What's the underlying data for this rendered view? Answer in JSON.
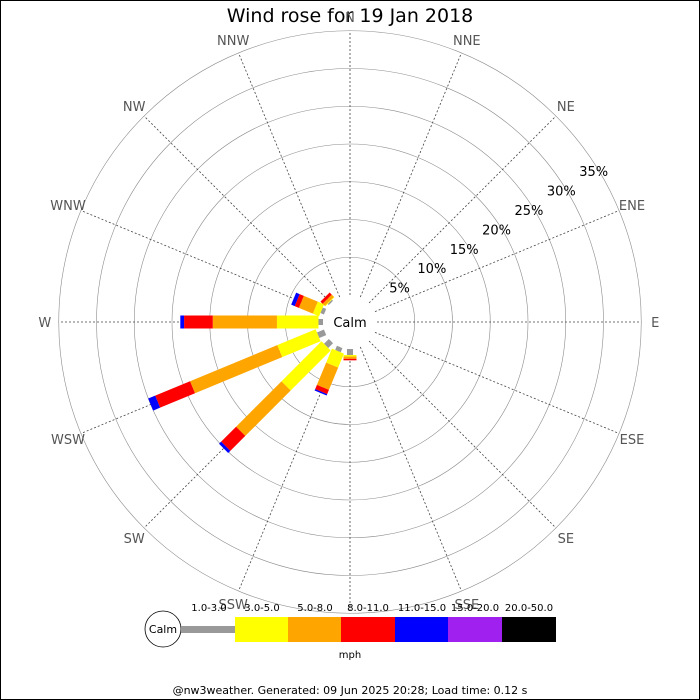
{
  "title": "Wind rose for 19 Jan 2018",
  "footer": "@nw3weather. Generated: 09 Jun 2025 20:28; Load time: 0.12 s",
  "chart_data": {
    "type": "wind_rose",
    "title": "Wind rose for 19 Jan 2018",
    "center_label": "Calm",
    "unit": "mph",
    "rlim": [
      0,
      35
    ],
    "radial_ticks": [
      5,
      10,
      15,
      20,
      25,
      30,
      35
    ],
    "radial_tick_labels": [
      "5%",
      "10%",
      "15%",
      "20%",
      "25%",
      "30%",
      "35%"
    ],
    "directions": [
      "N",
      "NNE",
      "NE",
      "ENE",
      "E",
      "ESE",
      "SE",
      "SSE",
      "S",
      "SSW",
      "SW",
      "WSW",
      "W",
      "WNW",
      "NW",
      "NNW"
    ],
    "speed_bins": [
      {
        "label": "",
        "color": "#999999"
      },
      {
        "label": "1.0-3.0",
        "color": "#ffff00"
      },
      {
        "label": "3.0-5.0",
        "color": "#ffa500"
      },
      {
        "label": "5.0-8.0",
        "color": "#ff0000"
      },
      {
        "label": "8.0-11.0",
        "color": "#0000ff"
      },
      {
        "label": "11.0-15.0",
        "color": "#a020f0"
      },
      {
        "label": "15.0-20.0",
        "color": "#000000"
      },
      {
        "label": "20.0-50.0",
        "color": ""
      }
    ],
    "series": [
      {
        "direction": "S",
        "values": [
          0.8,
          0.2,
          0.3,
          0.2,
          0.0,
          0.0,
          0.0
        ]
      },
      {
        "direction": "SSW",
        "values": [
          0.6,
          2.0,
          3.2,
          0.6,
          0.2,
          0.0,
          0.0
        ]
      },
      {
        "direction": "SW",
        "values": [
          0.9,
          7.5,
          8.5,
          2.8,
          0.4,
          0.0,
          0.0
        ]
      },
      {
        "direction": "WSW",
        "values": [
          1.0,
          5.5,
          12.5,
          5.0,
          1.0,
          0.0,
          0.0
        ]
      },
      {
        "direction": "W",
        "values": [
          0.6,
          5.5,
          8.5,
          3.8,
          0.5,
          0.0,
          0.0
        ]
      },
      {
        "direction": "WNW",
        "values": [
          0.5,
          0.9,
          2.0,
          0.6,
          0.5,
          0.0,
          0.0
        ]
      },
      {
        "direction": "NW",
        "values": [
          0.2,
          0.1,
          0.4,
          0.4,
          0.0,
          0.0,
          0.0
        ]
      }
    ]
  }
}
